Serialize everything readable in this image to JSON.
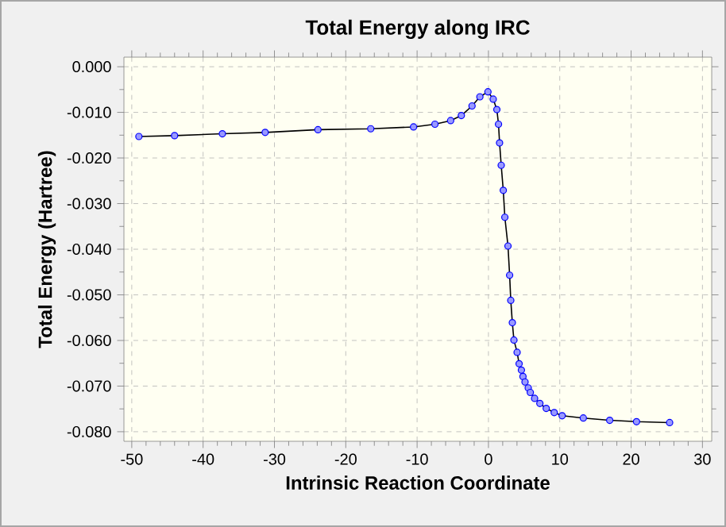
{
  "chart_data": {
    "type": "line",
    "title": "Total Energy along IRC",
    "xlabel": "Intrinsic Reaction Coordinate",
    "ylabel": "Total Energy (Hartree)",
    "xlim": [
      -51.1,
      31.3
    ],
    "ylim": [
      -0.0821,
      0.0021
    ],
    "xticks": [
      -50,
      -40,
      -30,
      -20,
      -10,
      0,
      10,
      20,
      30
    ],
    "yticks": [
      {
        "value": 0,
        "label": "0.000"
      },
      {
        "value": -0.01,
        "label": "-0.010"
      },
      {
        "value": -0.02,
        "label": "-0.020"
      },
      {
        "value": -0.03,
        "label": "-0.030"
      },
      {
        "value": -0.04,
        "label": "-0.040"
      },
      {
        "value": -0.05,
        "label": "-0.050"
      },
      {
        "value": -0.06,
        "label": "-0.060"
      },
      {
        "value": -0.07,
        "label": "-0.070"
      },
      {
        "value": -0.08,
        "label": "-0.080"
      }
    ],
    "grid": true,
    "marker": "circle",
    "line_style": "solid",
    "series": [
      {
        "color": "#0000ff",
        "x": [
          -49,
          -44,
          -37.3,
          -31.3,
          -23.9,
          -16.5,
          -10.5,
          -7.5,
          -5.3,
          -3.8,
          -2.3,
          -1.2,
          -0.07,
          0.67,
          1.18,
          1.41,
          1.56,
          1.79,
          2.08,
          2.3,
          2.74,
          2.97,
          3.13,
          3.35,
          3.57,
          4.02,
          4.3,
          4.62,
          4.84,
          5.13,
          5.58,
          5.87,
          6.47,
          7.21,
          8.1,
          9.22,
          10.33,
          13.3,
          17.0,
          20.76,
          25.4
        ],
        "values": [
          -0.0153,
          -0.0151,
          -0.0147,
          -0.0144,
          -0.0138,
          -0.0136,
          -0.0132,
          -0.0126,
          -0.0118,
          -0.0107,
          -0.0086,
          -0.0066,
          -0.0055,
          -0.0071,
          -0.0094,
          -0.0126,
          -0.0167,
          -0.0216,
          -0.0271,
          -0.033,
          -0.0393,
          -0.0457,
          -0.0512,
          -0.0561,
          -0.0599,
          -0.0626,
          -0.0651,
          -0.0665,
          -0.0679,
          -0.0691,
          -0.0704,
          -0.0714,
          -0.0727,
          -0.0738,
          -0.0749,
          -0.0758,
          -0.0765,
          -0.077,
          -0.0775,
          -0.0778,
          -0.078
        ]
      }
    ]
  }
}
